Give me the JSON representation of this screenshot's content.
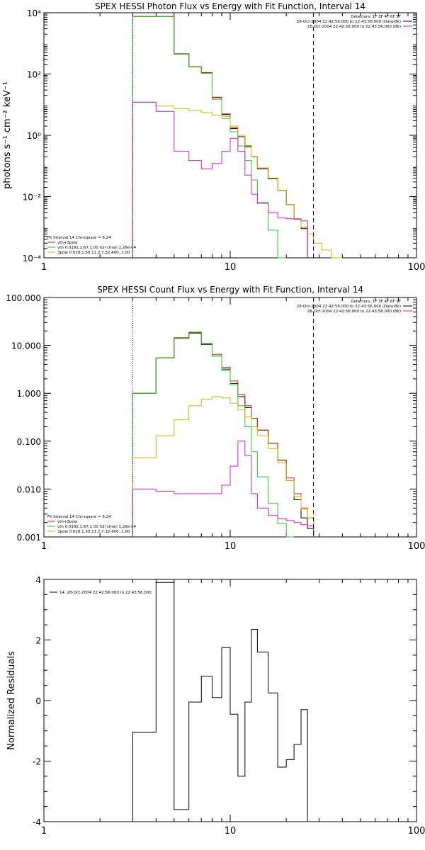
{
  "chart_data": [
    {
      "type": "line",
      "title": "SPEX HESSI Photon Flux vs Energy with Fit Function, Interval 14",
      "ylabel": "photons s⁻¹ cm⁻² keV⁻¹",
      "xlabel": "",
      "x_scale": "log",
      "y_scale": "log",
      "xlim": [
        1,
        100
      ],
      "ylim": [
        0.0001,
        10000
      ],
      "x_ticks": [
        1,
        10,
        100
      ],
      "x_tick_labels": [
        "1",
        "10",
        "100"
      ],
      "y_ticks": [
        0.0001,
        0.01,
        1,
        100,
        10000
      ],
      "y_tick_labels": [
        "10⁻⁴",
        "10⁻²",
        "10⁰",
        "10²",
        "10⁴"
      ],
      "header_lines": [
        "Detectors: 1F 3F 4F 6F 9F",
        "28-Oct-2004 22:42:56.000 to 22:43:56.000 (Data-Bk)",
        "28-Oct-2004 22:42:56.000 to 22:43:56.000 (Bk)"
      ],
      "header_colors": [
        "#000000",
        "#000000",
        "#d61ad6"
      ],
      "legend_lines": [
        "Fit Interval 14   Chi-square = 6.24",
        "vth+3pow",
        "vth 0.0192,1.67,1.00  full chian 1.26e-04",
        "3pow 0.628,1.50,11.2,7.32,400.,1.00"
      ],
      "legend_colors": [
        "#000000",
        "#d62020",
        "#22cc22",
        "#d4b400"
      ],
      "edges": [
        3,
        4,
        5,
        6,
        7,
        8,
        9,
        10,
        11,
        12,
        13,
        14,
        16,
        18,
        20,
        22,
        24,
        26,
        28,
        31,
        35,
        40,
        45,
        50
      ],
      "series": [
        {
          "color": "#000000",
          "values": [
            7600,
            7600,
            450,
            170,
            110,
            17,
            4.8,
            1.65,
            0.9,
            0.42,
            0.2,
            0.08,
            0.038,
            0.016,
            0.0055,
            0.0019,
            0.0009
          ]
        },
        {
          "color": "#d62020",
          "values": [
            7600,
            7600,
            460,
            175,
            112,
            17.5,
            5,
            1.75,
            1,
            0.46,
            0.2,
            0.085,
            0.04,
            0.016,
            0.0055,
            0.0019,
            0.001
          ]
        },
        {
          "color": "#22cc22",
          "values": [
            7600,
            7600,
            450,
            170,
            105,
            15,
            4.2,
            1.3,
            0.45,
            0.15,
            0.035,
            0.0065,
            0.0008,
            0.0001
          ]
        },
        {
          "color": "#d4b400",
          "values": [
            12,
            9,
            7.5,
            6.5,
            5.5,
            4.5,
            3.5,
            2,
            1,
            0.45,
            0.2,
            0.085,
            0.04,
            0.016,
            0.0055,
            0.0019,
            0.001,
            0.0006,
            0.0003,
            0.00018,
            0.0001
          ]
        },
        {
          "color": "#d61ad6",
          "values": [
            12,
            6,
            0.3,
            0.15,
            0.08,
            0.12,
            0.3,
            0.8,
            0.3,
            0.05,
            0.012,
            0.006,
            0.003,
            0.002,
            0.0019,
            0.0018,
            0.0016
          ]
        }
      ],
      "vlines": [
        {
          "x": 3,
          "style": "dotted"
        },
        {
          "x": 28,
          "style": "dashed"
        }
      ]
    },
    {
      "type": "line",
      "title": "SPEX HESSI Count Flux vs Energy with Fit Function, Interval 14",
      "ylabel": "",
      "xlabel": "",
      "x_scale": "log",
      "y_scale": "log",
      "xlim": [
        1,
        100
      ],
      "ylim": [
        0.001,
        100
      ],
      "x_ticks": [
        1,
        10,
        100
      ],
      "x_tick_labels": [
        "1",
        "10",
        "100"
      ],
      "y_ticks": [
        0.001,
        0.01,
        0.1,
        1,
        10,
        100
      ],
      "y_tick_labels": [
        "0.001",
        "0.010",
        "0.100",
        "1.000",
        "10.000",
        "100.000"
      ],
      "header_lines": [
        "Detectors: 1F 3F 4F 6F 9F",
        "28-Oct-2004 22:42:56.000 to 22:43:56.000 (Data-Bk)",
        "28-Oct-2004 22:42:56.000 to 22:43:56.000 (Bk)"
      ],
      "header_colors": [
        "#000000",
        "#000000",
        "#d61ad6"
      ],
      "legend_lines": [
        "Fit Interval 14   Chi-square = 6.24",
        "vth+3pow",
        "vth 0.0192,1.67,1.00  full chian 1.26e-04",
        "3pow 0.628,1.50,11.2,7.32,400.,1.00"
      ],
      "legend_colors": [
        "#000000",
        "#d62020",
        "#22cc22",
        "#d4b400"
      ],
      "edges": [
        3,
        4,
        5,
        6,
        7,
        8,
        9,
        10,
        11,
        12,
        13,
        14,
        16,
        18,
        20,
        22,
        24,
        26,
        28
      ],
      "series": [
        {
          "color": "#000000",
          "values": [
            1,
            5.5,
            14,
            18,
            10.5,
            6,
            3.2,
            1.6,
            0.85,
            0.5,
            0.3,
            0.17,
            0.09,
            0.04,
            0.015,
            0.006,
            0.0025,
            0.0015
          ]
        },
        {
          "color": "#d62020",
          "values": [
            1,
            5.5,
            14.5,
            18.5,
            11,
            6.5,
            3.5,
            1.8,
            0.95,
            0.55,
            0.3,
            0.17,
            0.09,
            0.04,
            0.017,
            0.008,
            0.004,
            0.0025
          ]
        },
        {
          "color": "#22cc22",
          "values": [
            1,
            5.5,
            14,
            19,
            11,
            6,
            3,
            1.5,
            0.55,
            0.2,
            0.06,
            0.018,
            0.005,
            0.0019,
            0.001
          ]
        },
        {
          "color": "#d4b400",
          "values": [
            0.045,
            0.13,
            0.28,
            0.55,
            0.75,
            0.85,
            0.8,
            0.62,
            0.45,
            0.32,
            0.2,
            0.13,
            0.07,
            0.035,
            0.015,
            0.007,
            0.0038,
            0.0025
          ]
        },
        {
          "color": "#d61ad6",
          "values": [
            0.01,
            0.009,
            0.008,
            0.008,
            0.008,
            0.008,
            0.012,
            0.03,
            0.1,
            0.05,
            0.008,
            0.004,
            0.0028,
            0.0024,
            0.0022,
            0.002,
            0.0018,
            0.0017
          ]
        }
      ],
      "vlines": [
        {
          "x": 3,
          "style": "dotted"
        },
        {
          "x": 28,
          "style": "dashed"
        }
      ]
    },
    {
      "type": "line",
      "title": "",
      "ylabel": "Normalized Residuals",
      "xlabel": "",
      "x_scale": "log",
      "y_scale": "linear",
      "xlim": [
        1,
        100
      ],
      "ylim": [
        -4,
        4
      ],
      "x_ticks": [
        1,
        10,
        100
      ],
      "x_tick_labels": [
        "1",
        "10",
        "100"
      ],
      "y_ticks": [
        -4,
        -2,
        0,
        2,
        4
      ],
      "y_tick_labels": [
        "-4",
        "-2",
        "0",
        "2",
        "4"
      ],
      "header_lines": [],
      "legend_lines": [
        "14. 28-Oct-2004 22:42:56.000 to 22:43:56.000"
      ],
      "legend_colors": [
        "#000000"
      ],
      "edges": [
        3,
        4,
        5,
        6,
        7,
        8,
        9,
        10,
        11,
        12,
        13,
        14,
        16,
        18,
        20,
        22,
        24,
        26,
        28
      ],
      "series": [
        {
          "color": "#000000",
          "values": [
            -1.05,
            3.9,
            -3.6,
            -0.05,
            0.8,
            0.1,
            1.75,
            -0.45,
            -2.5,
            -0.05,
            2.35,
            1.6,
            0.25,
            -2.2,
            -1.95,
            -1.45,
            -0.3
          ]
        }
      ],
      "vlines": []
    }
  ]
}
